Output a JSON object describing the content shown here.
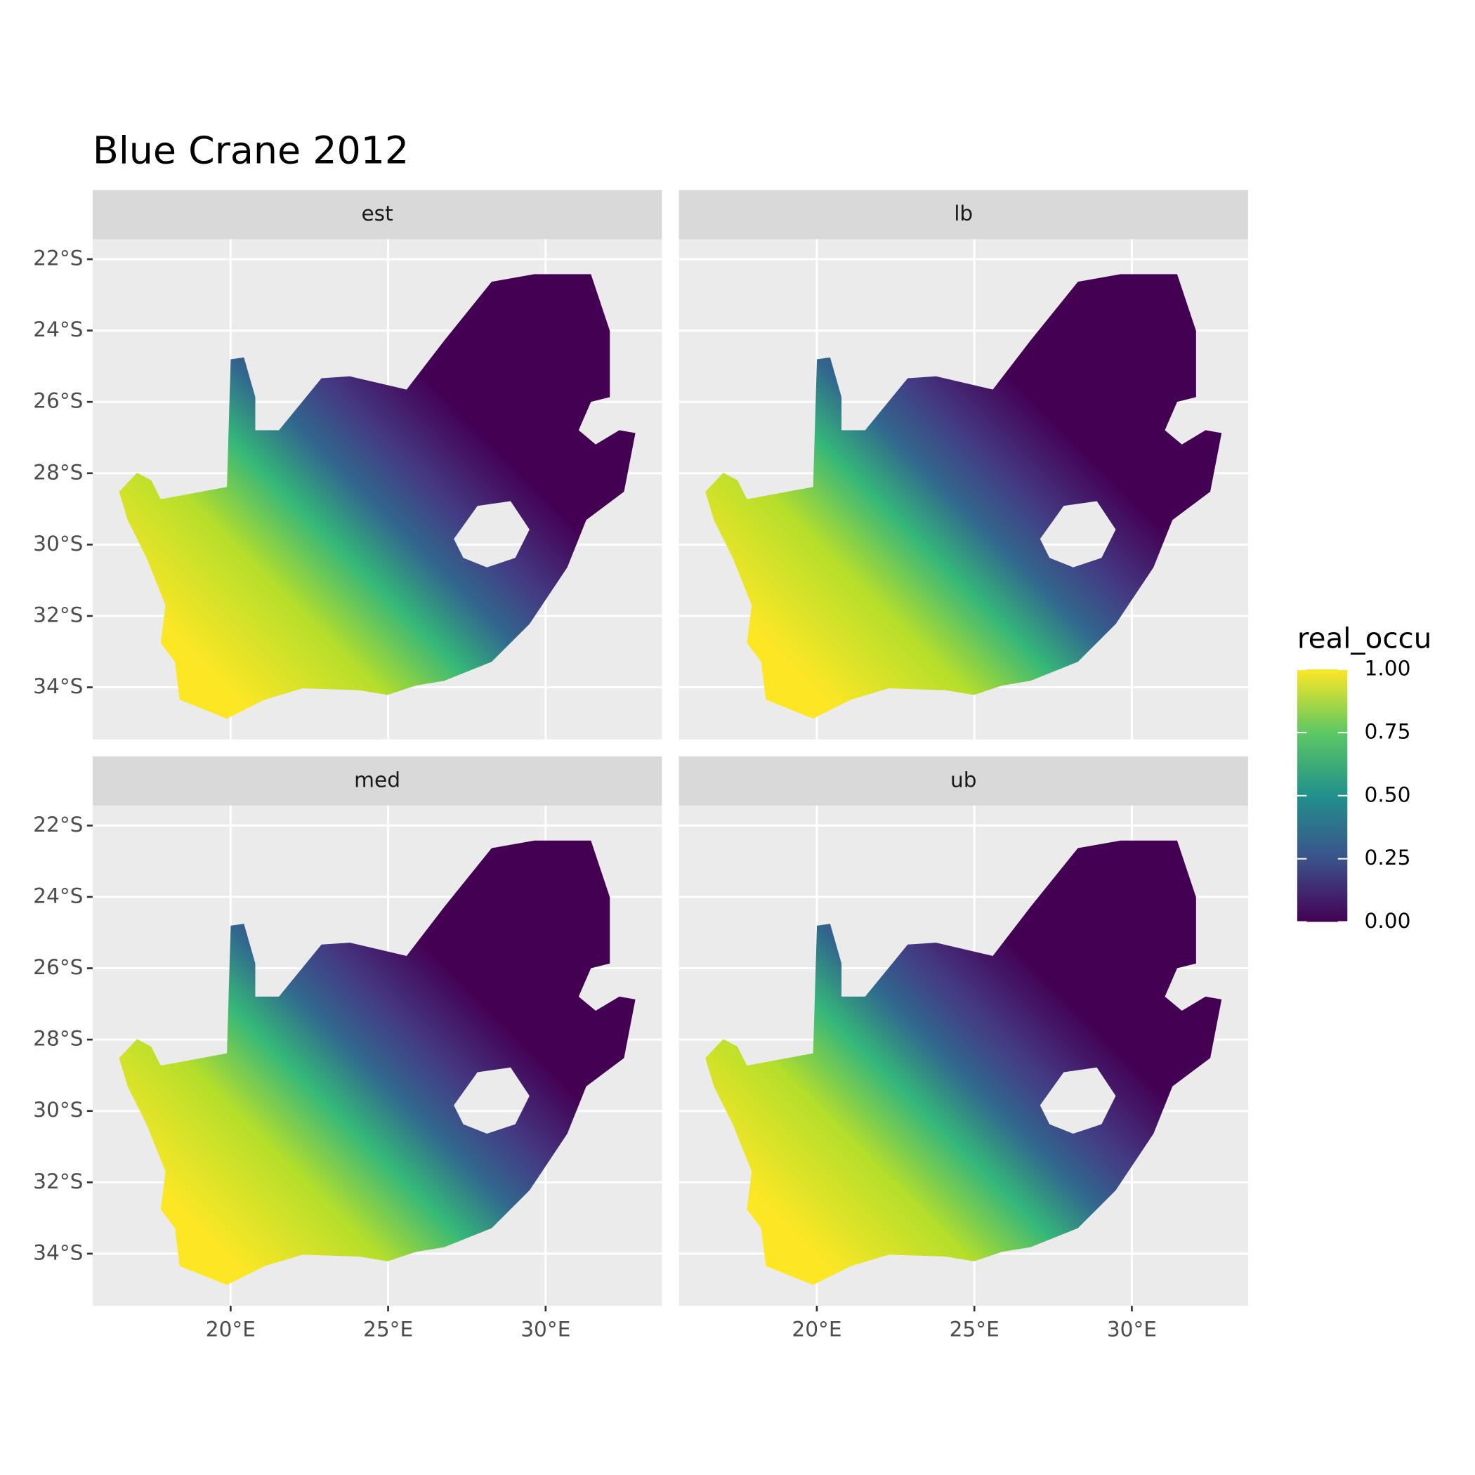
{
  "chart_data": {
    "type": "map",
    "title": "Blue Crane 2012",
    "facets": [
      "est",
      "lb",
      "med",
      "ub"
    ],
    "xlim": [
      15.62,
      33.69
    ],
    "ylim": [
      -35.46,
      -21.44
    ],
    "xticks": [
      {
        "value": 20,
        "label": "20°E"
      },
      {
        "value": 25,
        "label": "25°E"
      },
      {
        "value": 30,
        "label": "30°E"
      }
    ],
    "yticks": [
      {
        "value": -22,
        "label": "22°S"
      },
      {
        "value": -24,
        "label": "24°S"
      },
      {
        "value": -26,
        "label": "26°S"
      },
      {
        "value": -28,
        "label": "28°S"
      },
      {
        "value": -30,
        "label": "30°S"
      },
      {
        "value": -32,
        "label": "32°S"
      },
      {
        "value": -34,
        "label": "34°S"
      }
    ],
    "grid": true,
    "legend": {
      "title": "real_occu",
      "limits": [
        0,
        1
      ],
      "ticks": [
        {
          "value": 0,
          "label": "0.00"
        },
        {
          "value": 0.25,
          "label": "0.25"
        },
        {
          "value": 0.5,
          "label": "0.50"
        },
        {
          "value": 0.75,
          "label": "0.75"
        },
        {
          "value": 1,
          "label": "1.00"
        }
      ]
    }
  }
}
